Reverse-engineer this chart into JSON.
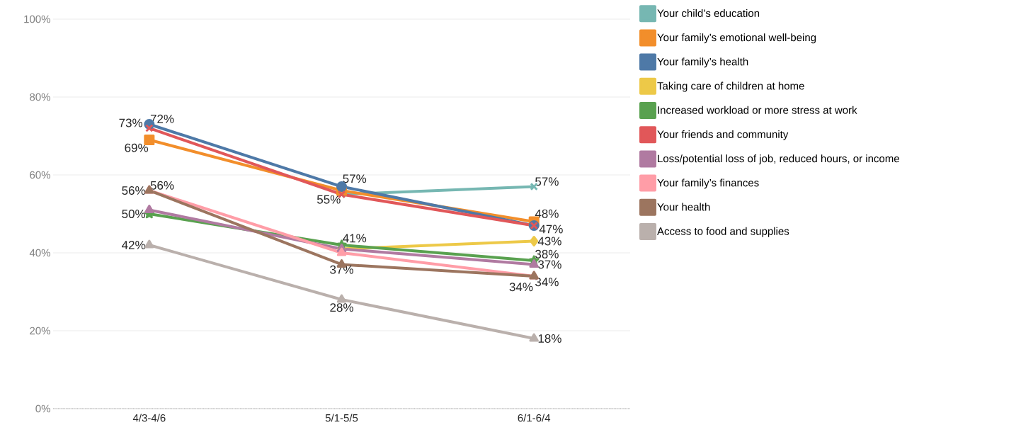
{
  "chart_data": {
    "type": "line",
    "categories": [
      "4/3-4/6",
      "5/1-5/5",
      "6/1-6/4"
    ],
    "ylim": [
      0,
      100
    ],
    "yticks": [
      {
        "value": 0,
        "label": "0%"
      },
      {
        "value": 20,
        "label": "20%"
      },
      {
        "value": 40,
        "label": "40%"
      },
      {
        "value": 60,
        "label": "60%"
      },
      {
        "value": 80,
        "label": "80%"
      },
      {
        "value": 100,
        "label": "100%"
      }
    ],
    "grid": "y",
    "legend": "right",
    "series": [
      {
        "name": "Your child’s education",
        "color": "#76b7b2",
        "marker": "cross",
        "values": [
          null,
          55,
          57
        ],
        "value_labels": [
          null,
          "55%",
          "57%"
        ]
      },
      {
        "name": "Your family’s emotional well-being",
        "color": "#f28e2b",
        "marker": "square",
        "values": [
          69,
          56,
          48
        ],
        "value_labels": [
          "69%",
          null,
          "48%"
        ]
      },
      {
        "name": "Your family’s health",
        "color": "#4e79a7",
        "marker": "circle",
        "values": [
          73,
          57,
          47
        ],
        "value_labels": [
          "73%",
          "57%",
          "47%"
        ]
      },
      {
        "name": "Taking care of children at home",
        "color": "#edc948",
        "marker": "diamond",
        "values": [
          null,
          41,
          43
        ],
        "value_labels": [
          null,
          "41%",
          "43%"
        ]
      },
      {
        "name": "Increased workload or more stress at work",
        "color": "#59a14f",
        "marker": "star",
        "values": [
          50,
          42,
          38
        ],
        "value_labels": [
          "50%",
          null,
          "38%"
        ]
      },
      {
        "name": "Your friends and community",
        "color": "#e15759",
        "marker": "cross",
        "values": [
          72,
          55,
          47
        ],
        "value_labels": [
          "72%",
          null,
          null
        ]
      },
      {
        "name": "Loss/potential loss of job, reduced hours, or income",
        "color": "#b07aa1",
        "marker": "triangle",
        "values": [
          51,
          41,
          37
        ],
        "value_labels": [
          null,
          null,
          "37%"
        ]
      },
      {
        "name": "Your family’s finances",
        "color": "#ff9da7",
        "marker": "triangle",
        "values": [
          56,
          40,
          34
        ],
        "value_labels": [
          "56%",
          null,
          "34%"
        ]
      },
      {
        "name": "Your health",
        "color": "#9c755f",
        "marker": "triangle",
        "values": [
          56,
          37,
          34
        ],
        "value_labels": [
          "56%",
          "37%",
          "34%"
        ]
      },
      {
        "name": "Access to food and supplies",
        "color": "#bab0ac",
        "marker": "triangle",
        "values": [
          42,
          28,
          18
        ],
        "value_labels": [
          "42%",
          "28%",
          "18%"
        ]
      }
    ]
  }
}
